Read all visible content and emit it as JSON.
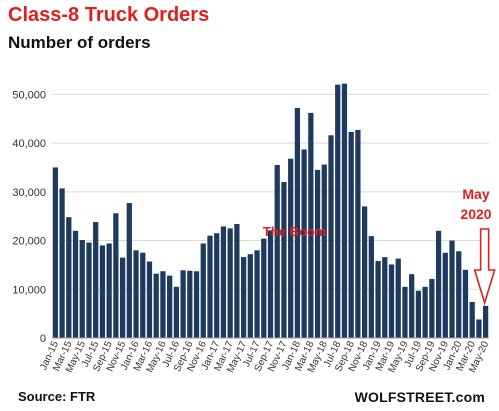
{
  "header": {
    "title": "Class-8 Truck Orders",
    "subtitle": "Number of orders"
  },
  "footer": {
    "source": "Source: FTR",
    "brand": "WOLFSTREET.com"
  },
  "colors": {
    "bar": "#1f3a5f",
    "grid": "#d9d9d9",
    "accent": "#e01f1f"
  },
  "chart_data": {
    "type": "bar",
    "ylim": [
      0,
      55000
    ],
    "yticks": [
      0,
      10000,
      20000,
      30000,
      40000,
      50000
    ],
    "ytick_labels": [
      "0",
      "10,000",
      "20,000",
      "30,000",
      "40,000",
      "50,000"
    ],
    "grid": "horizontal",
    "categories": [
      "Jan-15",
      "Feb-15",
      "Mar-15",
      "Apr-15",
      "May-15",
      "Jun-15",
      "Jul-15",
      "Aug-15",
      "Sep-15",
      "Oct-15",
      "Nov-15",
      "Dec-15",
      "Jan-16",
      "Feb-16",
      "Mar-16",
      "Apr-16",
      "May-16",
      "Jun-16",
      "Jul-16",
      "Aug-16",
      "Sep-16",
      "Oct-16",
      "Nov-16",
      "Dec-16",
      "Jan-17",
      "Feb-17",
      "Mar-17",
      "Apr-17",
      "May-17",
      "Jun-17",
      "Jul-17",
      "Aug-17",
      "Sep-17",
      "Oct-17",
      "Nov-17",
      "Dec-17",
      "Jan-18",
      "Feb-18",
      "Mar-18",
      "Apr-18",
      "May-18",
      "Jun-18",
      "Jul-18",
      "Aug-18",
      "Sep-18",
      "Oct-18",
      "Nov-18",
      "Dec-18",
      "Jan-19",
      "Feb-19",
      "Mar-19",
      "Apr-19",
      "May-19",
      "Jun-19",
      "Jul-19",
      "Aug-19",
      "Sep-19",
      "Oct-19",
      "Nov-19",
      "Dec-19",
      "Jan-20",
      "Feb-20",
      "Mar-20",
      "Apr-20",
      "May-20"
    ],
    "values": [
      35000,
      30700,
      24800,
      22000,
      20100,
      19600,
      23800,
      19000,
      19400,
      25600,
      16500,
      27700,
      18000,
      17500,
      15700,
      13200,
      13700,
      12800,
      10500,
      13900,
      13800,
      13700,
      19400,
      21000,
      21500,
      22900,
      22500,
      23400,
      16600,
      17200,
      18000,
      20400,
      22100,
      35500,
      32000,
      36800,
      47200,
      38700,
      46200,
      34500,
      35600,
      41600,
      52000,
      52200,
      42300,
      42700,
      27000,
      20900,
      15800,
      16600,
      15100,
      16300,
      10500,
      13100,
      9700,
      10500,
      12100,
      22000,
      17500,
      20000,
      17800,
      14000,
      7400,
      3800,
      6600
    ],
    "xtick_labels": [
      "Jan-15",
      "Mar-15",
      "May-15",
      "Jul-15",
      "Sep-15",
      "Nov-15",
      "Jan-16",
      "Mar-16",
      "May-16",
      "Jul-16",
      "Sep-16",
      "Nov-16",
      "Jan-17",
      "Mar-17",
      "May-17",
      "Jul-17",
      "Sep-17",
      "Nov-17",
      "Jan-18",
      "Mar-18",
      "May-18",
      "Jul-18",
      "Sep-18",
      "Nov-18",
      "Jan-19",
      "Mar-19",
      "May-19",
      "Jul-19",
      "Sep-19",
      "Nov-19",
      "Jan-20",
      "Mar-20",
      "May-20"
    ],
    "annotations": [
      {
        "text": "The Boom",
        "category": "Dec-17"
      },
      {
        "text": "May",
        "category": "May-20"
      },
      {
        "text": "2020",
        "category": "May-20"
      }
    ]
  }
}
